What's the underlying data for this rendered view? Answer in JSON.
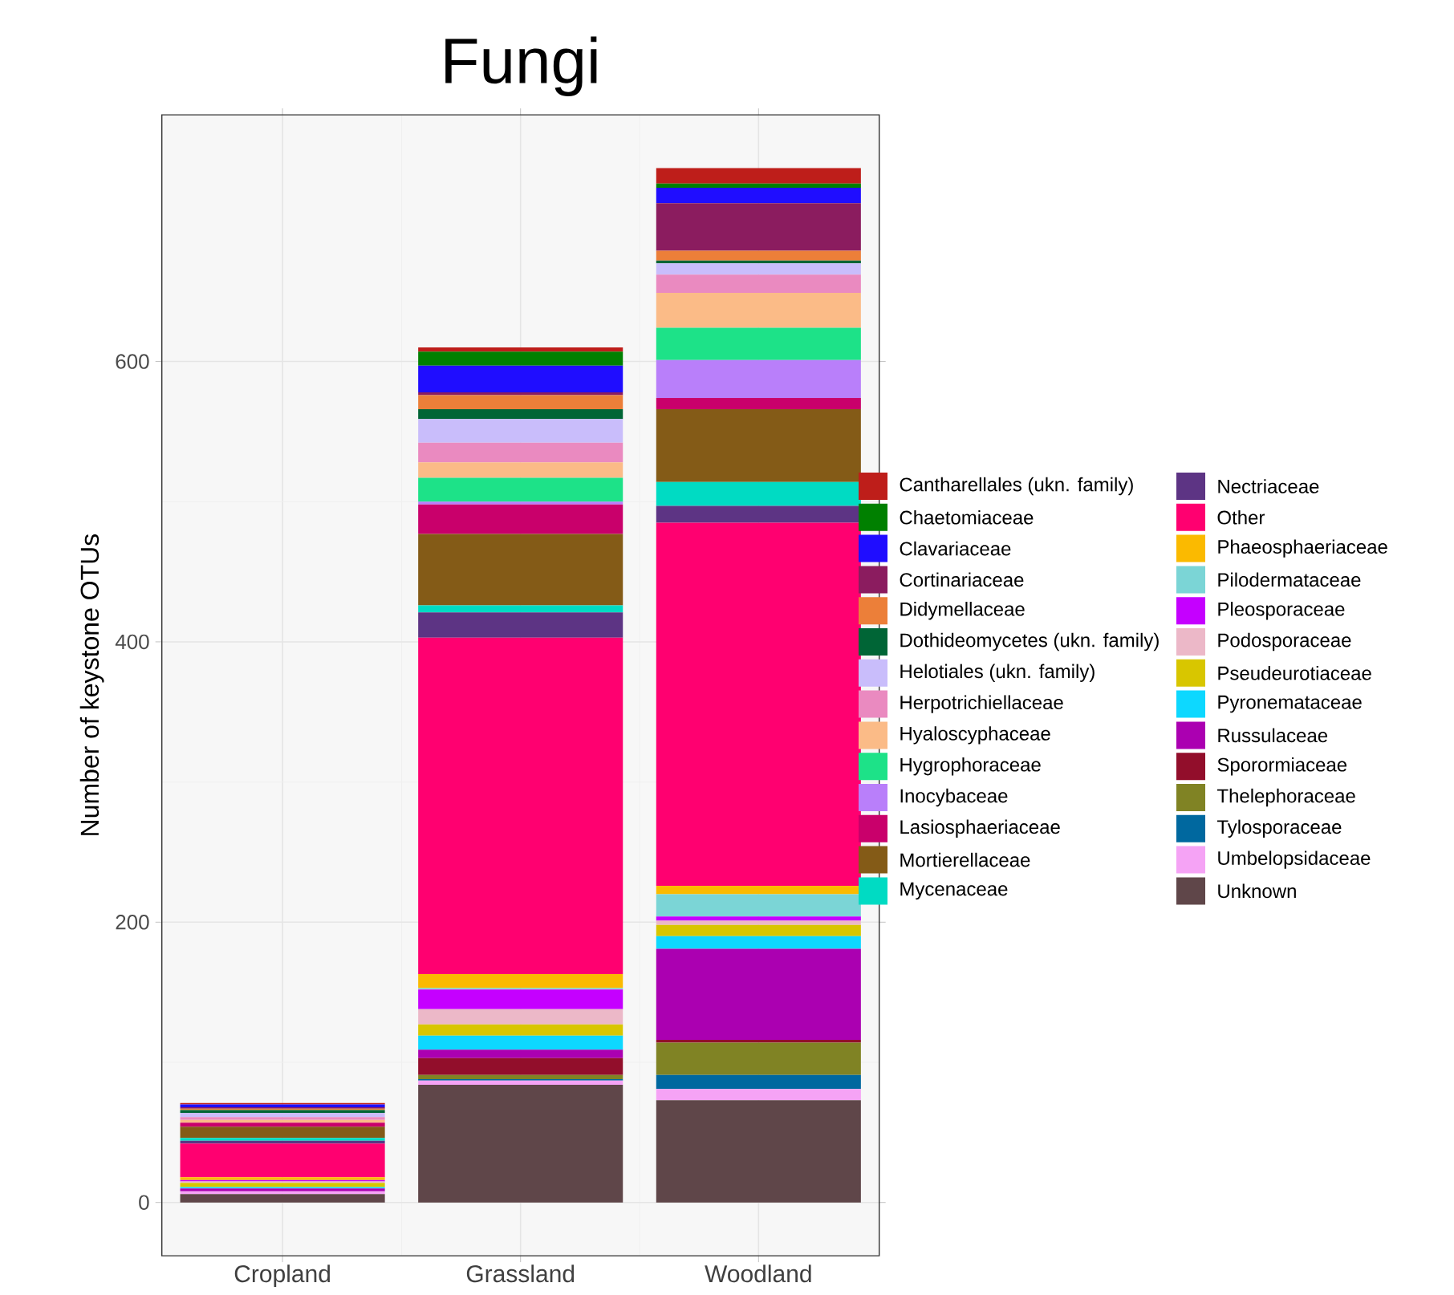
{
  "chart_data": {
    "type": "bar",
    "stacked": true,
    "title": "Fungi",
    "ylabel": "Number of keystone OTUs",
    "categories": [
      "Cropland",
      "Grassland",
      "Woodland"
    ],
    "ylim": [
      -38,
      776
    ],
    "yticks": [
      0,
      200,
      400,
      600
    ],
    "grid": true,
    "legend": "right",
    "series": [
      {
        "name": "Unknown",
        "color": "#5f4649",
        "values": [
          6,
          84,
          73
        ]
      },
      {
        "name": "Umbelopsidaceae",
        "color": "#f5a3f5",
        "values": [
          2,
          3,
          8
        ]
      },
      {
        "name": "Tylosporaceae",
        "color": "#00689f",
        "values": [
          0,
          1,
          10
        ]
      },
      {
        "name": "Thelephoraceae",
        "color": "#808324",
        "values": [
          0,
          3,
          23
        ]
      },
      {
        "name": "Sporormiaceae",
        "color": "#920e2b",
        "values": [
          0,
          12,
          2
        ]
      },
      {
        "name": "Russulaceae",
        "color": "#ab00b1",
        "values": [
          2,
          6,
          65
        ]
      },
      {
        "name": "Pyronemataceae",
        "color": "#0dd8ff",
        "values": [
          1,
          10,
          9
        ]
      },
      {
        "name": "Pseudeurotiaceae",
        "color": "#d8c600",
        "values": [
          3,
          8,
          8
        ]
      },
      {
        "name": "Podosporaceae",
        "color": "#ecb8c8",
        "values": [
          1,
          11,
          3
        ]
      },
      {
        "name": "Pleosporaceae",
        "color": "#c500ff",
        "values": [
          1,
          14,
          3
        ]
      },
      {
        "name": "Pilodermataceae",
        "color": "#7bd5d6",
        "values": [
          0,
          1,
          16
        ]
      },
      {
        "name": "Phaeosphaeriaceae",
        "color": "#fbba00",
        "values": [
          2,
          10,
          6
        ]
      },
      {
        "name": "Other",
        "color": "#ff0070",
        "values": [
          24,
          240,
          259
        ]
      },
      {
        "name": "Nectriaceae",
        "color": "#5d3484",
        "values": [
          2,
          18,
          12
        ]
      },
      {
        "name": "Mycenaceae",
        "color": "#00dbc3",
        "values": [
          2,
          5,
          17
        ]
      },
      {
        "name": "Mortierellaceae",
        "color": "#845b17",
        "values": [
          8,
          51,
          52
        ]
      },
      {
        "name": "Lasiosphaeriaceae",
        "color": "#c9006b",
        "values": [
          3,
          21,
          8
        ]
      },
      {
        "name": "Inocybaceae",
        "color": "#b97ffa",
        "values": [
          0,
          2,
          27
        ]
      },
      {
        "name": "Hygrophoraceae",
        "color": "#1de288",
        "values": [
          0,
          17,
          23
        ]
      },
      {
        "name": "Hyaloscyphaceae",
        "color": "#fbbb87",
        "values": [
          2,
          11,
          25
        ]
      },
      {
        "name": "Herpotrichiellaceae",
        "color": "#ea8ac0",
        "values": [
          2,
          14,
          13
        ]
      },
      {
        "name": "Helotiales (ukn. family)",
        "color": "#c9bdfb",
        "values": [
          3,
          17,
          8
        ]
      },
      {
        "name": "Dothideomycetes (ukn. family)",
        "color": "#006536",
        "values": [
          2,
          7,
          2
        ]
      },
      {
        "name": "Didymellaceae",
        "color": "#ec7f39",
        "values": [
          1,
          10,
          7
        ]
      },
      {
        "name": "Cortinariaceae",
        "color": "#8b1c5f",
        "values": [
          1,
          2,
          34
        ]
      },
      {
        "name": "Clavariaceae",
        "color": "#1f0dff",
        "values": [
          2,
          19,
          11
        ]
      },
      {
        "name": "Chaetomiaceae",
        "color": "#008000",
        "values": [
          0,
          10,
          3
        ]
      },
      {
        "name": "Cantharellales (ukn. family)",
        "color": "#be1e1a",
        "values": [
          1,
          3,
          11
        ]
      }
    ]
  }
}
